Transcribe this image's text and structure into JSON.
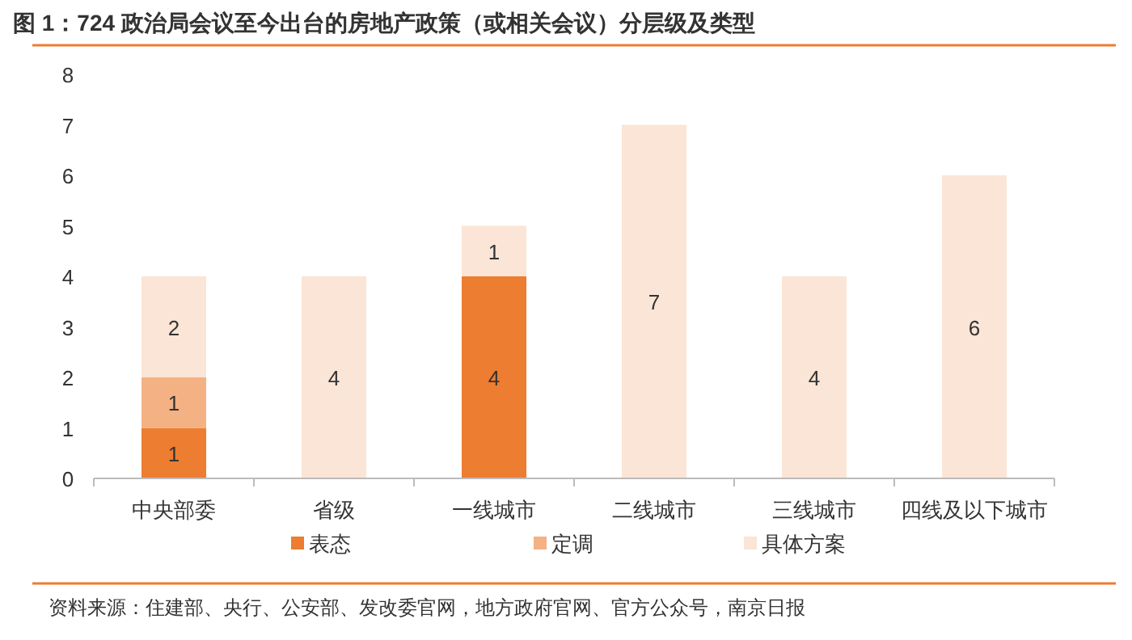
{
  "chart_data": {
    "type": "bar",
    "stacked": true,
    "title": "图 1：724 政治局会议至今出台的房地产政策（或相关会议）分层级及类型",
    "categories": [
      "中央部委",
      "省级",
      "一线城市",
      "二线城市",
      "三线城市",
      "四线及以下城市"
    ],
    "series": [
      {
        "name": "表态",
        "color": "#ed7d31",
        "values": [
          1,
          0,
          4,
          0,
          0,
          0
        ],
        "value_labels": [
          "1",
          null,
          "4",
          null,
          null,
          null
        ]
      },
      {
        "name": "定调",
        "color": "#f4b183",
        "values": [
          1,
          0,
          0,
          0,
          0,
          0
        ],
        "value_labels": [
          "1",
          null,
          null,
          null,
          null,
          null
        ]
      },
      {
        "name": "具体方案",
        "color": "#fbe5d6",
        "values": [
          2,
          4,
          1,
          7,
          4,
          6
        ],
        "value_labels": [
          "2",
          "4",
          "1",
          "7",
          "4",
          "6"
        ]
      }
    ],
    "ylim": [
      0,
      8
    ],
    "yticks": [
      0,
      1,
      2,
      3,
      4,
      5,
      6,
      7,
      8
    ],
    "grid": false,
    "legend": "bottom",
    "annotations": [
      "资料来源：住建部、央行、公安部、发改委官网，地方政府官网、官方公众号，南京日报"
    ]
  }
}
